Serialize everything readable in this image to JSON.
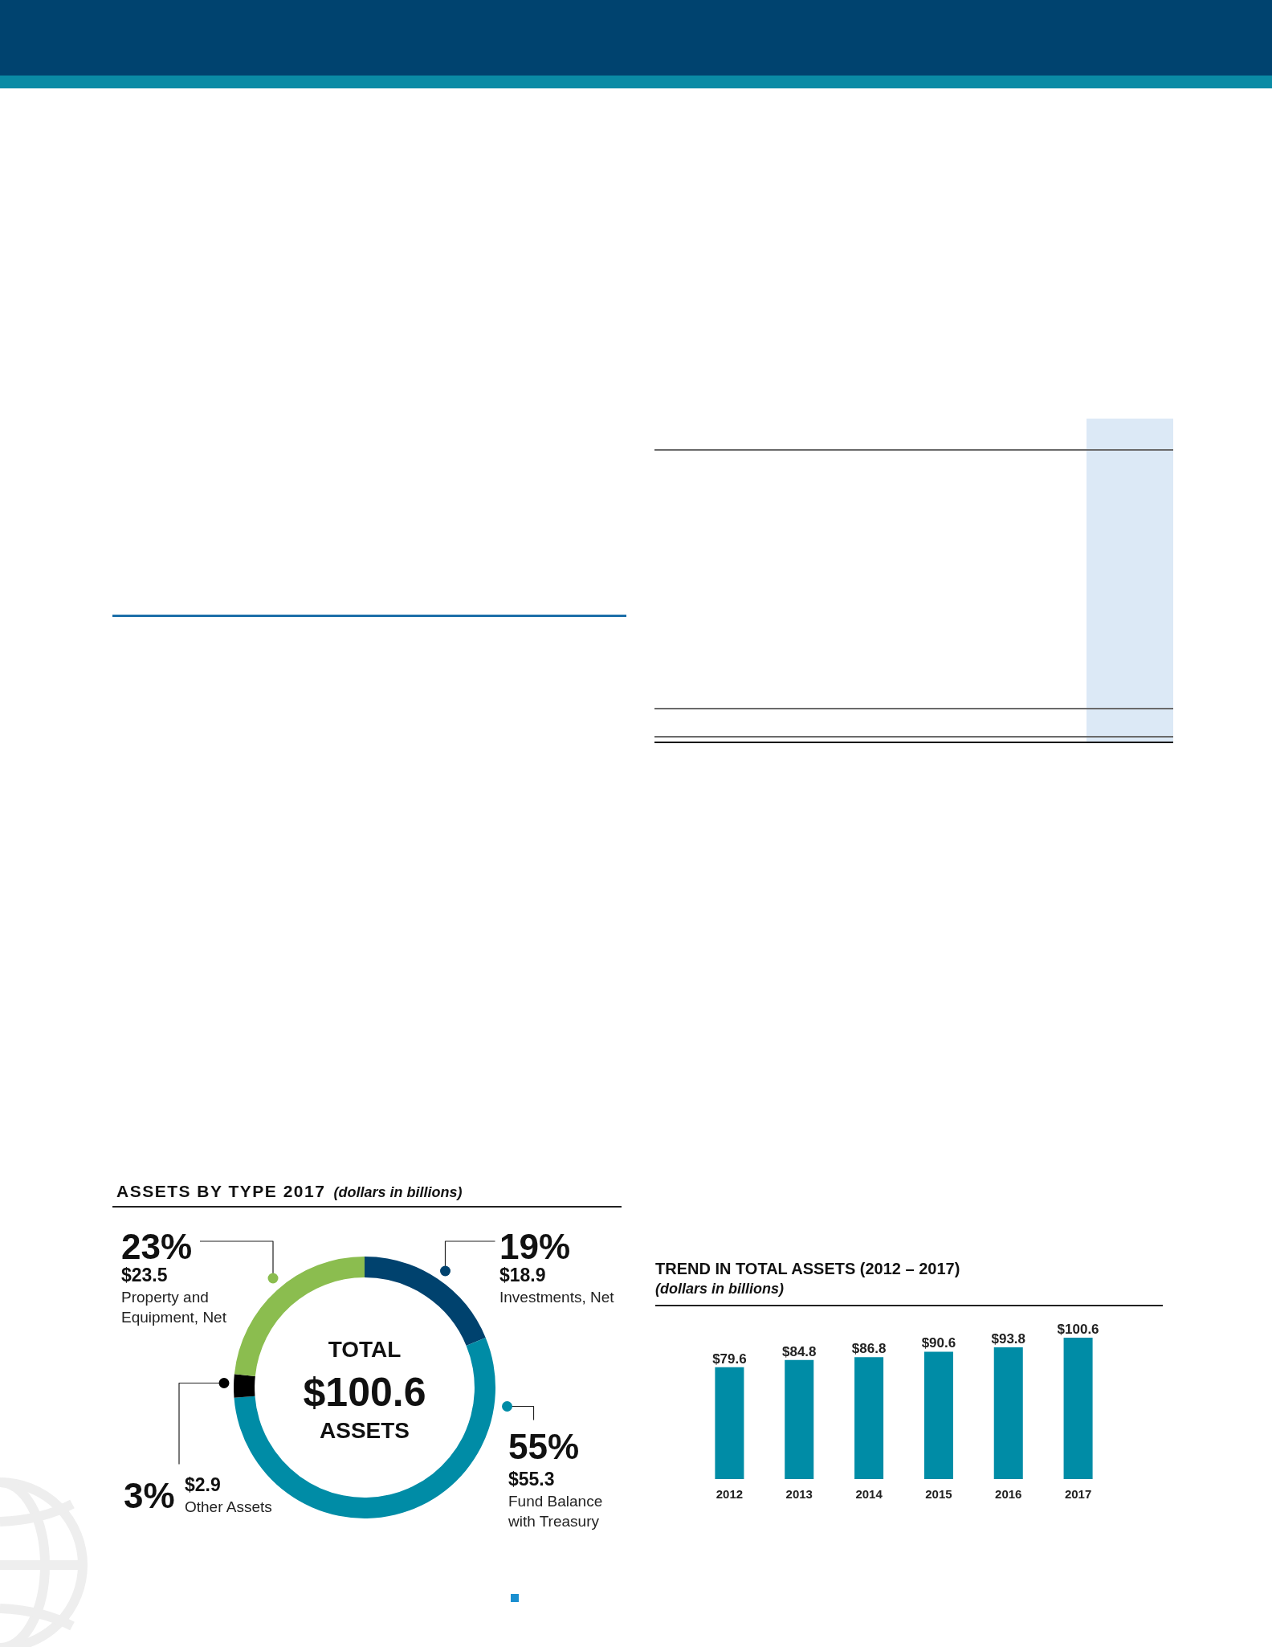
{
  "chart_data": [
    {
      "type": "donut",
      "title": "ASSETS BY TYPE 2017",
      "subtitle": "(dollars in billions)",
      "categories": [
        "Investments, Net",
        "Fund Balance with Treasury",
        "Other Assets",
        "Property and Equipment, Net"
      ],
      "values": [
        18.9,
        55.3,
        2.9,
        23.5
      ],
      "colors": [
        "#00426e",
        "#008ca6",
        "#000000",
        "#8bbd4f"
      ],
      "value_labels": [
        "$18.9",
        "$55.3",
        "$2.9",
        "$23.5"
      ],
      "annotations": [
        "19%",
        "55%",
        "3%",
        "23%",
        "TOTAL",
        "$100.6",
        "ASSETS"
      ]
    },
    {
      "type": "bar",
      "title": "TREND IN TOTAL ASSETS (2012 – 2017)",
      "subtitle": "(dollars in billions)",
      "categories": [
        "2012",
        "2013",
        "2014",
        "2015",
        "2016",
        "2017"
      ],
      "values": [
        79.6,
        84.8,
        86.8,
        90.6,
        93.8,
        100.6
      ],
      "color": "#008ca6",
      "value_labels": [
        "$79.6",
        "$84.8",
        "$86.8",
        "$90.6",
        "$93.8",
        "$100.6"
      ],
      "tick_labels": "x"
    }
  ]
}
